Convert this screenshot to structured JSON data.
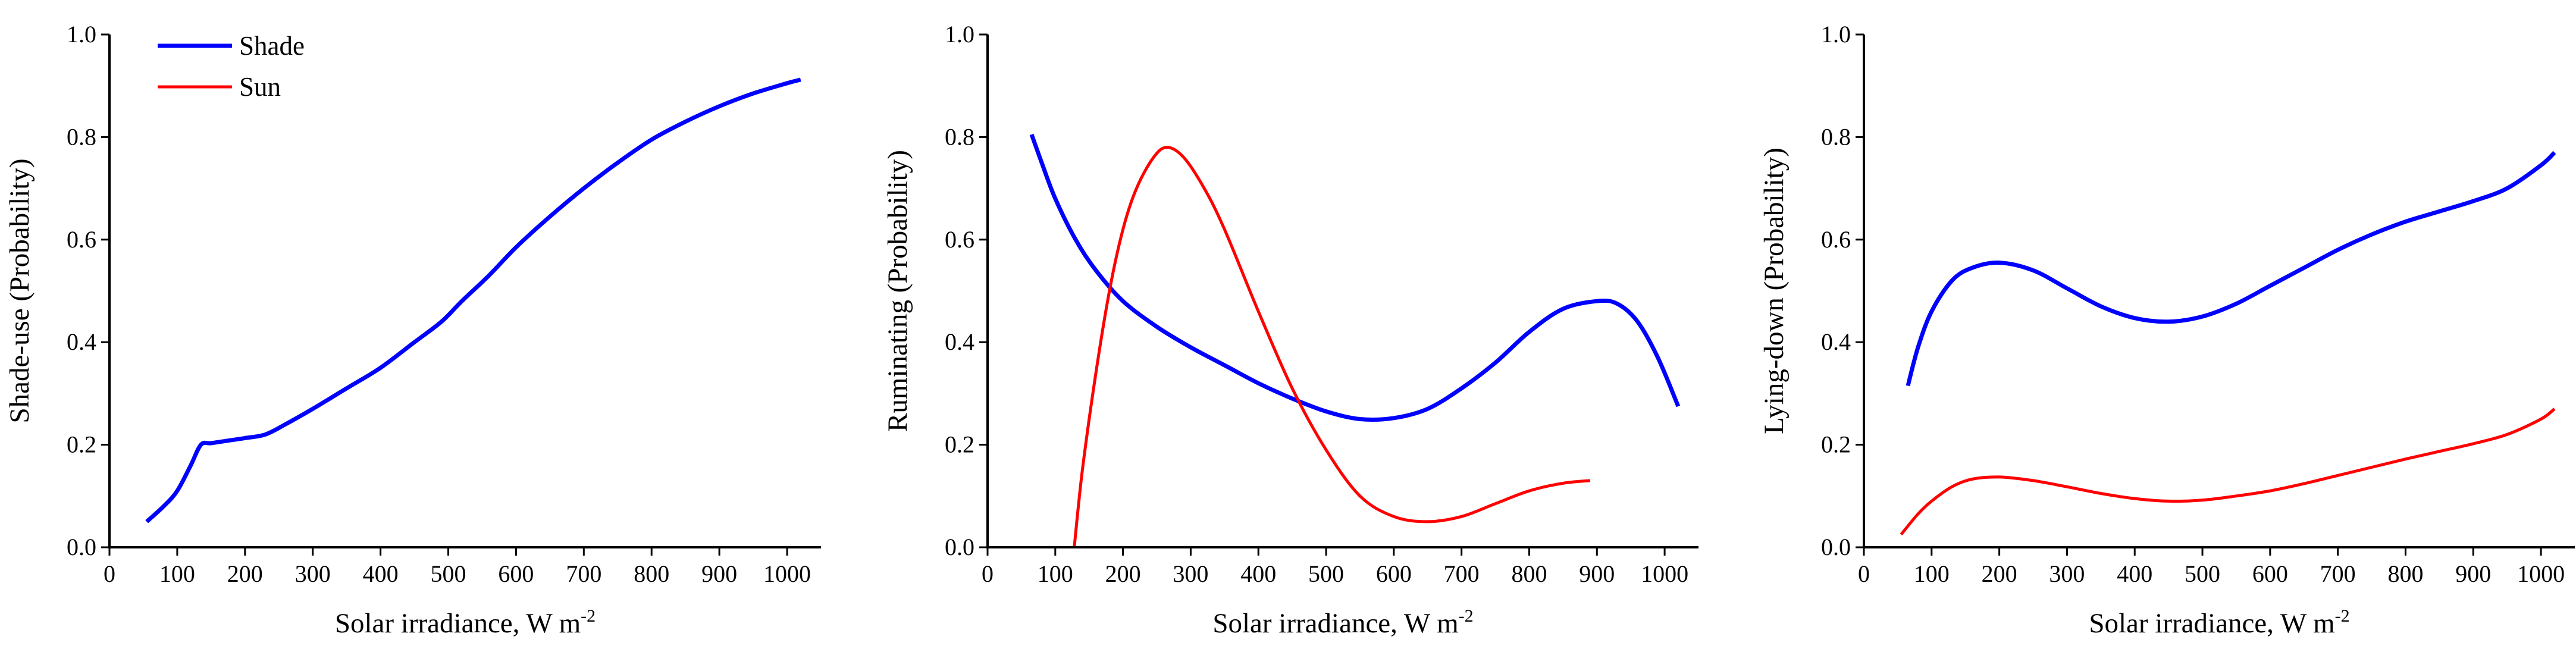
{
  "chart_data": [
    {
      "type": "line",
      "title": "",
      "xlabel": "Solar irradiance, W m",
      "xlabel_superscript": "-2",
      "ylabel": "Shade-use (Probability)",
      "xlim": [
        0,
        1050
      ],
      "ylim": [
        0.0,
        1.0
      ],
      "xticks": [
        0,
        100,
        200,
        300,
        400,
        500,
        600,
        700,
        800,
        900,
        1000
      ],
      "yticks": [
        "0.0",
        "0.2",
        "0.4",
        "0.6",
        "0.8",
        "1.0"
      ],
      "grid": false,
      "legend": {
        "placement": "top-left",
        "entries": [
          "Shade",
          "Sun"
        ]
      },
      "series": [
        {
          "name": "Shade",
          "color": "#0000ff",
          "x": [
            55,
            80,
            100,
            120,
            135,
            150,
            175,
            200,
            230,
            260,
            300,
            350,
            400,
            450,
            490,
            520,
            560,
            600,
            650,
            700,
            750,
            800,
            850,
            900,
            950,
            1000,
            1020
          ],
          "y": [
            0.05,
            0.08,
            0.11,
            0.16,
            0.2,
            0.203,
            0.208,
            0.213,
            0.22,
            0.24,
            0.27,
            0.31,
            0.35,
            0.4,
            0.44,
            0.48,
            0.53,
            0.585,
            0.645,
            0.7,
            0.75,
            0.795,
            0.83,
            0.86,
            0.885,
            0.905,
            0.912
          ]
        }
      ]
    },
    {
      "type": "line",
      "title": "",
      "xlabel": "Solar irradiance, W m",
      "xlabel_superscript": "-2",
      "ylabel": "Ruminating (Probability)",
      "xlim": [
        0,
        1050
      ],
      "ylim": [
        0.0,
        1.0
      ],
      "xticks": [
        0,
        100,
        200,
        300,
        400,
        500,
        600,
        700,
        800,
        900,
        1000
      ],
      "yticks": [
        "0.0",
        "0.2",
        "0.4",
        "0.6",
        "0.8",
        "1.0"
      ],
      "grid": false,
      "series": [
        {
          "name": "Shade",
          "color": "#0000ff",
          "x": [
            65,
            80,
            100,
            130,
            160,
            200,
            250,
            300,
            350,
            400,
            450,
            500,
            550,
            600,
            650,
            700,
            750,
            800,
            850,
            900,
            930,
            960,
            990,
            1020
          ],
          "y": [
            0.805,
            0.75,
            0.68,
            0.6,
            0.54,
            0.48,
            0.43,
            0.39,
            0.355,
            0.32,
            0.29,
            0.265,
            0.25,
            0.252,
            0.27,
            0.31,
            0.36,
            0.42,
            0.465,
            0.48,
            0.475,
            0.44,
            0.37,
            0.275
          ]
        },
        {
          "name": "Sun",
          "color": "#ff0000",
          "x": [
            128,
            140,
            160,
            180,
            200,
            220,
            245,
            265,
            290,
            320,
            350,
            400,
            450,
            500,
            550,
            600,
            650,
            700,
            750,
            800,
            850,
            890
          ],
          "y": [
            0.0,
            0.15,
            0.34,
            0.5,
            0.62,
            0.7,
            0.76,
            0.78,
            0.76,
            0.7,
            0.62,
            0.46,
            0.31,
            0.19,
            0.1,
            0.06,
            0.05,
            0.06,
            0.085,
            0.11,
            0.125,
            0.13
          ]
        }
      ]
    },
    {
      "type": "line",
      "title": "",
      "xlabel": "Solar irradiance, W m",
      "xlabel_superscript": "-2",
      "ylabel": "Lying-down (Probability)",
      "xlim": [
        0,
        1050
      ],
      "ylim": [
        0.0,
        1.0
      ],
      "xticks": [
        0,
        100,
        200,
        300,
        400,
        500,
        600,
        700,
        800,
        900,
        1000
      ],
      "yticks": [
        "0.0",
        "0.2",
        "0.4",
        "0.6",
        "0.8",
        "1.0"
      ],
      "grid": false,
      "series": [
        {
          "name": "Shade",
          "color": "#0000ff",
          "x": [
            65,
            80,
            100,
            130,
            160,
            200,
            250,
            300,
            350,
            400,
            450,
            500,
            550,
            600,
            650,
            700,
            750,
            800,
            850,
            900,
            950,
            1000,
            1020
          ],
          "y": [
            0.315,
            0.39,
            0.46,
            0.52,
            0.545,
            0.555,
            0.54,
            0.505,
            0.47,
            0.447,
            0.44,
            0.45,
            0.475,
            0.51,
            0.545,
            0.58,
            0.61,
            0.635,
            0.655,
            0.675,
            0.7,
            0.745,
            0.77
          ]
        },
        {
          "name": "Sun",
          "color": "#ff0000",
          "x": [
            55,
            80,
            100,
            130,
            160,
            200,
            250,
            300,
            350,
            400,
            450,
            500,
            550,
            600,
            650,
            700,
            750,
            800,
            850,
            900,
            950,
            1000,
            1020
          ],
          "y": [
            0.025,
            0.065,
            0.09,
            0.118,
            0.133,
            0.137,
            0.13,
            0.118,
            0.105,
            0.095,
            0.09,
            0.092,
            0.1,
            0.11,
            0.124,
            0.14,
            0.156,
            0.172,
            0.187,
            0.202,
            0.22,
            0.25,
            0.27
          ]
        }
      ]
    }
  ]
}
